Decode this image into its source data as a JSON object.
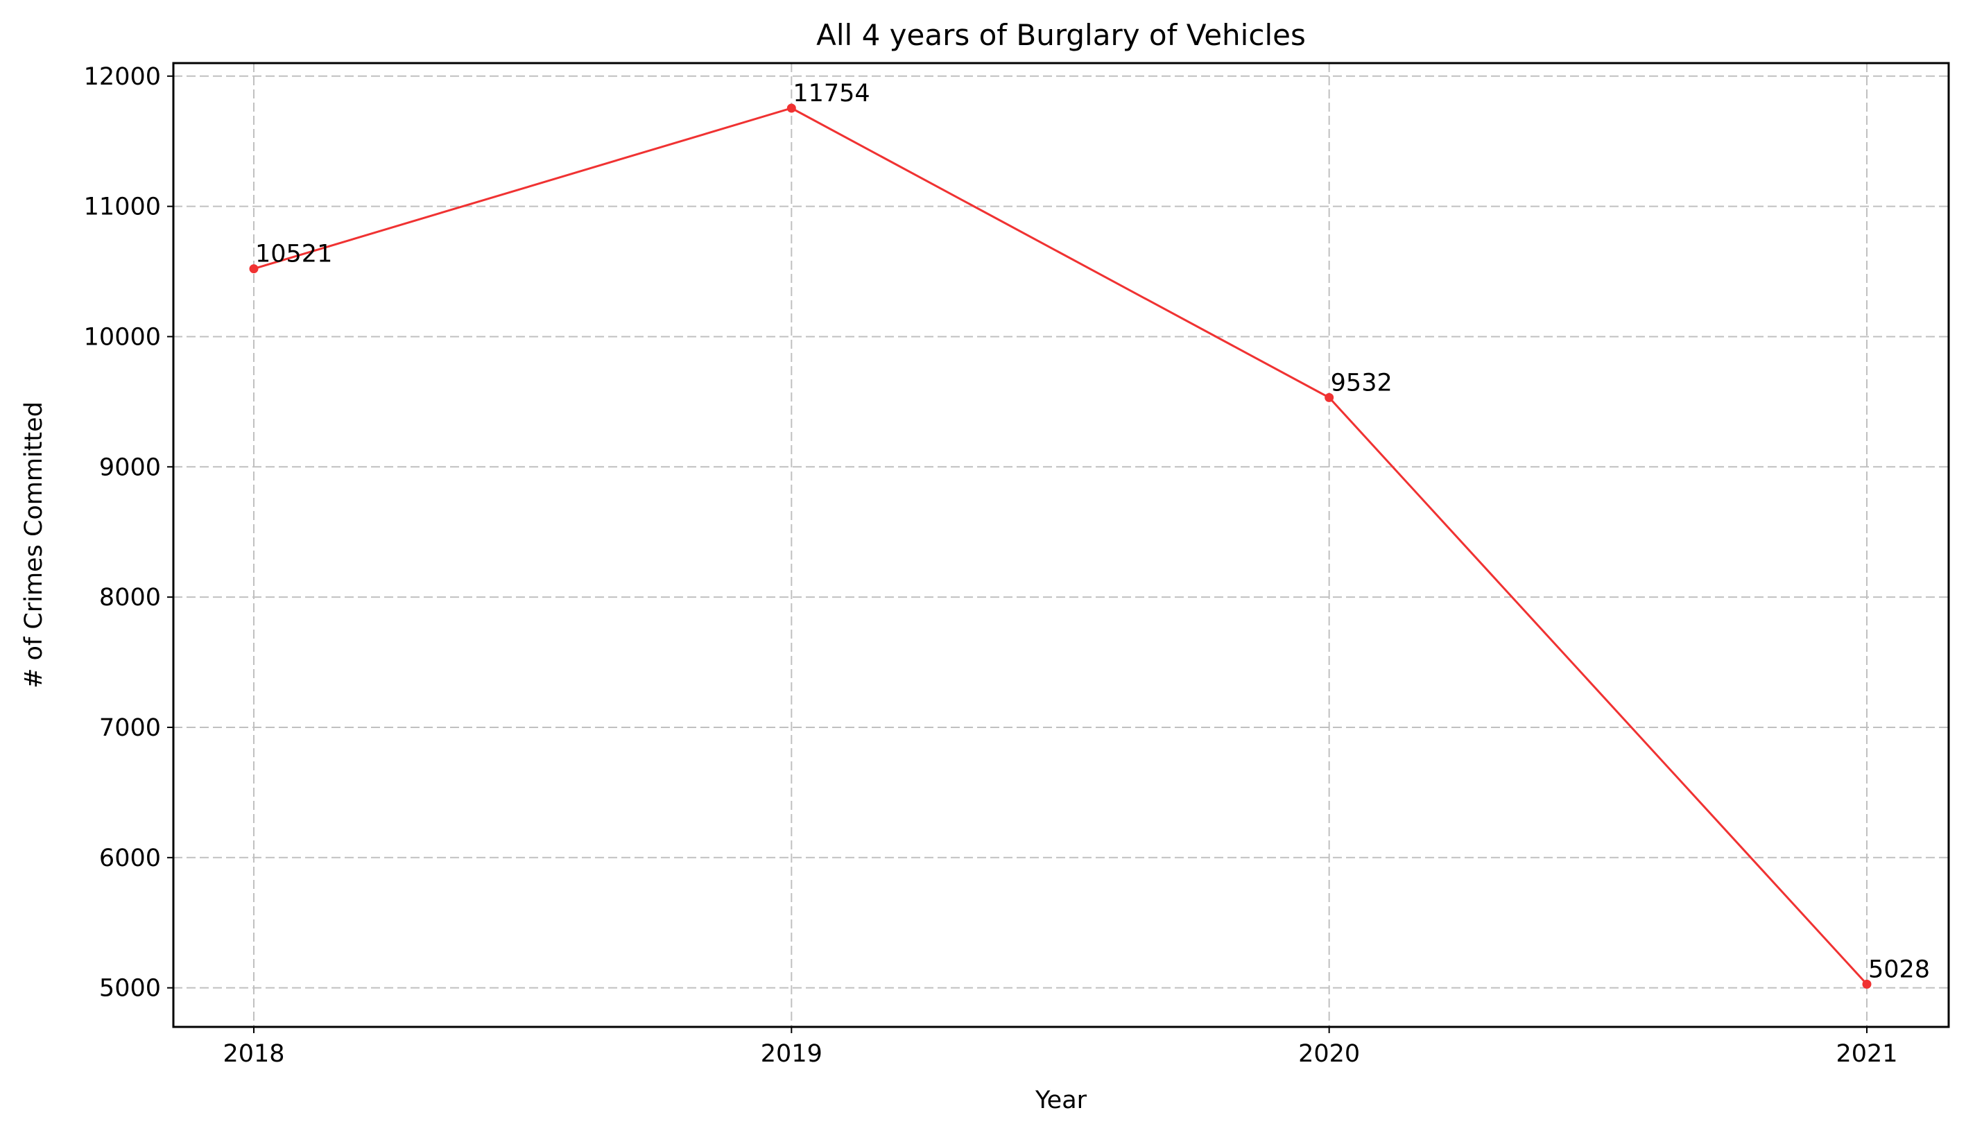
{
  "chart_data": {
    "type": "line",
    "title": "All 4 years of Burglary of Vehicles",
    "xlabel": "Year",
    "ylabel": "# of Crimes Committed",
    "x": [
      "2018",
      "2019",
      "2020",
      "2021"
    ],
    "series": [
      {
        "values": [
          10521,
          11754,
          9532,
          5028
        ],
        "color": "#f03232"
      }
    ],
    "data_labels": [
      "10521",
      "11754",
      "9532",
      "5028"
    ],
    "ylim": [
      4700,
      12100
    ],
    "yticks": [
      5000,
      6000,
      7000,
      8000,
      9000,
      10000,
      11000,
      12000
    ],
    "grid": true,
    "legend": "none"
  }
}
